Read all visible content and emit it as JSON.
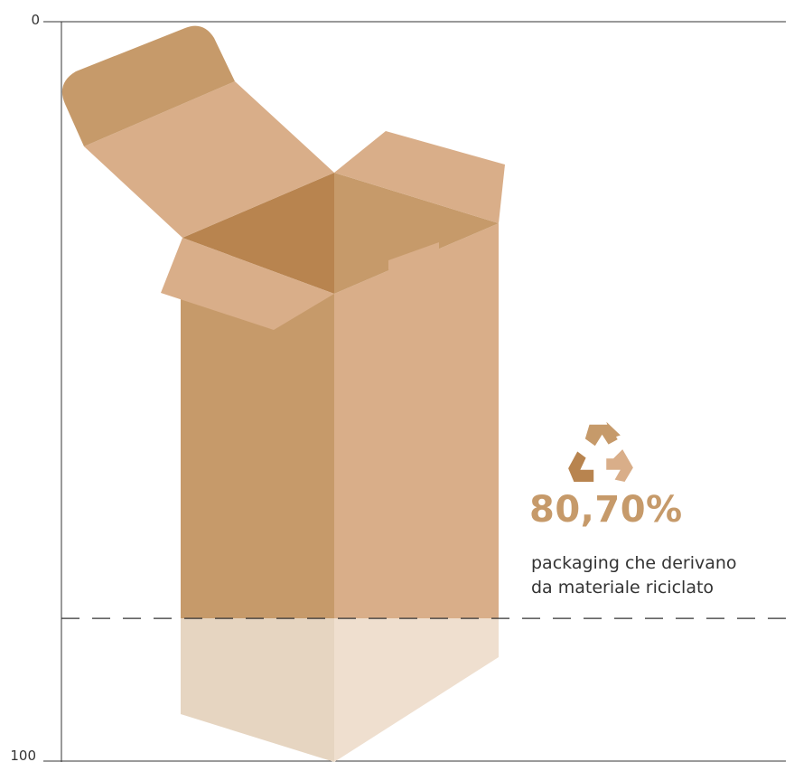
{
  "chart_data": {
    "type": "area",
    "ylim": [
      0,
      100
    ],
    "y_ticks": [
      "0",
      "100"
    ],
    "value": 80.7,
    "value_label": "80,70%",
    "caption_lines": [
      "packaging che derivano",
      "da materiale riciclato"
    ],
    "icon": "recycle-icon",
    "colors": {
      "box_dark": "#c69a6a",
      "box_light": "#d9ae89",
      "box_inner": "#b8844f",
      "faded_dark": "#e6d5c1",
      "faded_light": "#efdfcf",
      "accent": "#c69a6a",
      "axis": "#333333"
    }
  }
}
